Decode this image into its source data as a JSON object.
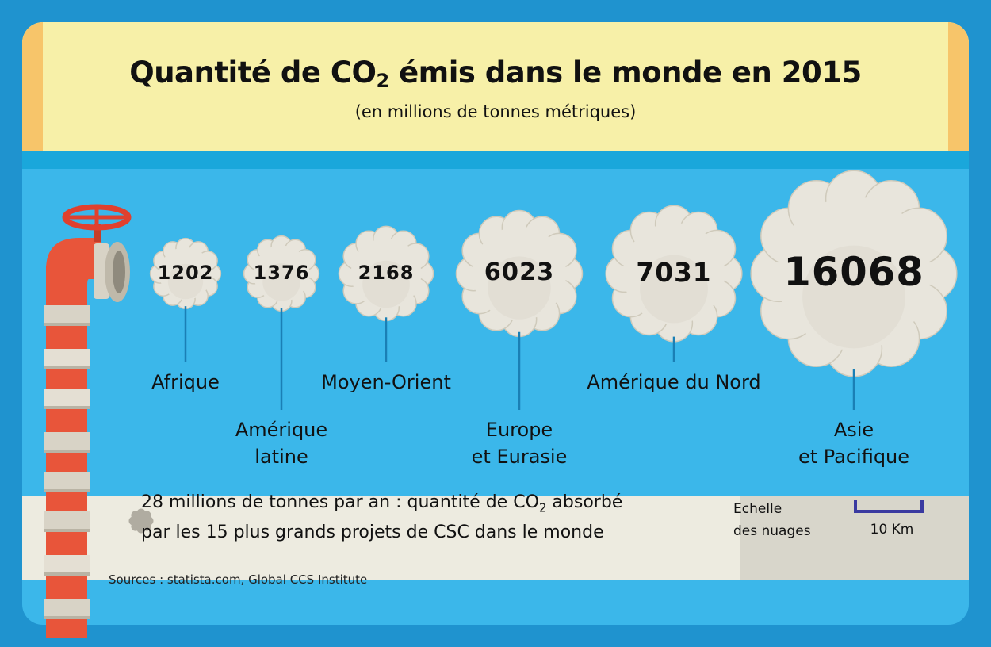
{
  "header": {
    "title_main": "Quantité de CO",
    "title_sub": "2",
    "title_rest": " émis dans le monde en 2015",
    "subtitle": "(en millions de tonnes métriques)"
  },
  "chart_data": {
    "type": "bubble",
    "title": "Quantité de CO2 émis dans le monde en 2015",
    "unit": "millions de tonnes métriques",
    "categories": [
      "Afrique",
      "Amérique latine",
      "Moyen-Orient",
      "Europe et Eurasie",
      "Amérique du Nord",
      "Asie et Pacifique"
    ],
    "values": [
      1202,
      1376,
      2168,
      6023,
      7031,
      16068
    ],
    "value_labels": [
      "1202",
      "1376",
      "2168",
      "6023",
      "7031",
      "16068"
    ],
    "label_lines": [
      [
        "Afrique"
      ],
      [
        "Amérique",
        "latine"
      ],
      [
        "Moyen-Orient"
      ],
      [
        "Europe",
        "et Eurasie"
      ],
      [
        "Amérique du Nord"
      ],
      [
        "Asie",
        "et Pacifique"
      ]
    ],
    "label_row": [
      "upper",
      "lower",
      "upper",
      "lower",
      "upper",
      "lower"
    ],
    "reference": {
      "value": 28,
      "text": "28 millions de tonnes par an"
    }
  },
  "legend": {
    "text_a": "28 millions de tonnes par an : quantité de CO",
    "text_sub": "2",
    "text_b": " absorbé",
    "text_line2": "par les 15 plus grands projets de CSC dans le monde"
  },
  "scale": {
    "label_line1": "Echelle",
    "label_line2": "des nuages",
    "value": "10 Km"
  },
  "source": "Sources : statista.com, Global CCS Institute",
  "colors": {
    "background": "#1f93cf",
    "panel": "#3bb7ea",
    "title_band": "#f7f0a8",
    "cloud": "#e8e5dc",
    "cloud_shadow": "#cfcabb",
    "pipe_red": "#e8553a",
    "pipe_grey": "#d8d3c6",
    "leader": "#1a7fb5",
    "scale_bar": "#3a3aa0"
  }
}
